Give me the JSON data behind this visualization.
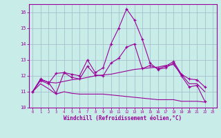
{
  "xlabel": "Windchill (Refroidissement éolien,°C)",
  "xlim": [
    -0.5,
    23.5
  ],
  "ylim": [
    10,
    16.5
  ],
  "yticks": [
    10,
    11,
    12,
    13,
    14,
    15,
    16
  ],
  "xticks": [
    0,
    1,
    2,
    3,
    4,
    5,
    6,
    7,
    8,
    9,
    10,
    11,
    12,
    13,
    14,
    15,
    16,
    17,
    18,
    19,
    20,
    21,
    22,
    23
  ],
  "background_color": "#c8ece8",
  "line_color": "#990099",
  "grid_color": "#a0b8c8",
  "series": [
    {
      "x": [
        0,
        1,
        2,
        3,
        4,
        5,
        6,
        7,
        8,
        9,
        10,
        11,
        12,
        13,
        14,
        15,
        16,
        17,
        18,
        19,
        20,
        21,
        22
      ],
      "y": [
        11.0,
        11.8,
        11.6,
        10.9,
        12.2,
        12.1,
        12.0,
        13.0,
        12.2,
        12.5,
        14.0,
        15.0,
        16.2,
        15.5,
        14.3,
        12.8,
        12.4,
        12.5,
        12.8,
        12.0,
        11.3,
        11.4,
        10.4
      ],
      "marker": "+"
    },
    {
      "x": [
        0,
        1,
        2,
        3,
        4,
        5,
        6,
        7,
        8,
        9,
        10,
        11,
        12,
        13,
        14,
        15,
        16,
        17,
        18,
        19,
        20,
        21,
        22
      ],
      "y": [
        11.0,
        11.7,
        11.5,
        12.15,
        12.2,
        11.9,
        11.8,
        12.6,
        12.05,
        12.0,
        12.8,
        13.1,
        13.8,
        14.0,
        12.45,
        12.65,
        12.45,
        12.6,
        12.9,
        12.1,
        11.8,
        11.75,
        11.3
      ],
      "marker": "+"
    },
    {
      "x": [
        0,
        1,
        2,
        3,
        4,
        5,
        6,
        7,
        8,
        9,
        10,
        11,
        12,
        13,
        14,
        15,
        16,
        17,
        18,
        19,
        20,
        21,
        22
      ],
      "y": [
        11.0,
        11.75,
        11.6,
        11.55,
        11.65,
        11.75,
        11.8,
        11.9,
        12.0,
        12.05,
        12.1,
        12.2,
        12.3,
        12.4,
        12.45,
        12.5,
        12.55,
        12.65,
        12.7,
        12.1,
        11.5,
        11.5,
        11.0
      ],
      "marker": null
    },
    {
      "x": [
        0,
        1,
        2,
        3,
        4,
        5,
        6,
        7,
        8,
        9,
        10,
        11,
        12,
        13,
        14,
        15,
        16,
        17,
        18,
        19,
        20,
        21,
        22
      ],
      "y": [
        11.0,
        11.5,
        11.2,
        10.85,
        11.0,
        10.9,
        10.85,
        10.85,
        10.85,
        10.85,
        10.8,
        10.75,
        10.7,
        10.65,
        10.6,
        10.55,
        10.5,
        10.5,
        10.5,
        10.4,
        10.4,
        10.4,
        10.35
      ],
      "marker": null
    }
  ]
}
